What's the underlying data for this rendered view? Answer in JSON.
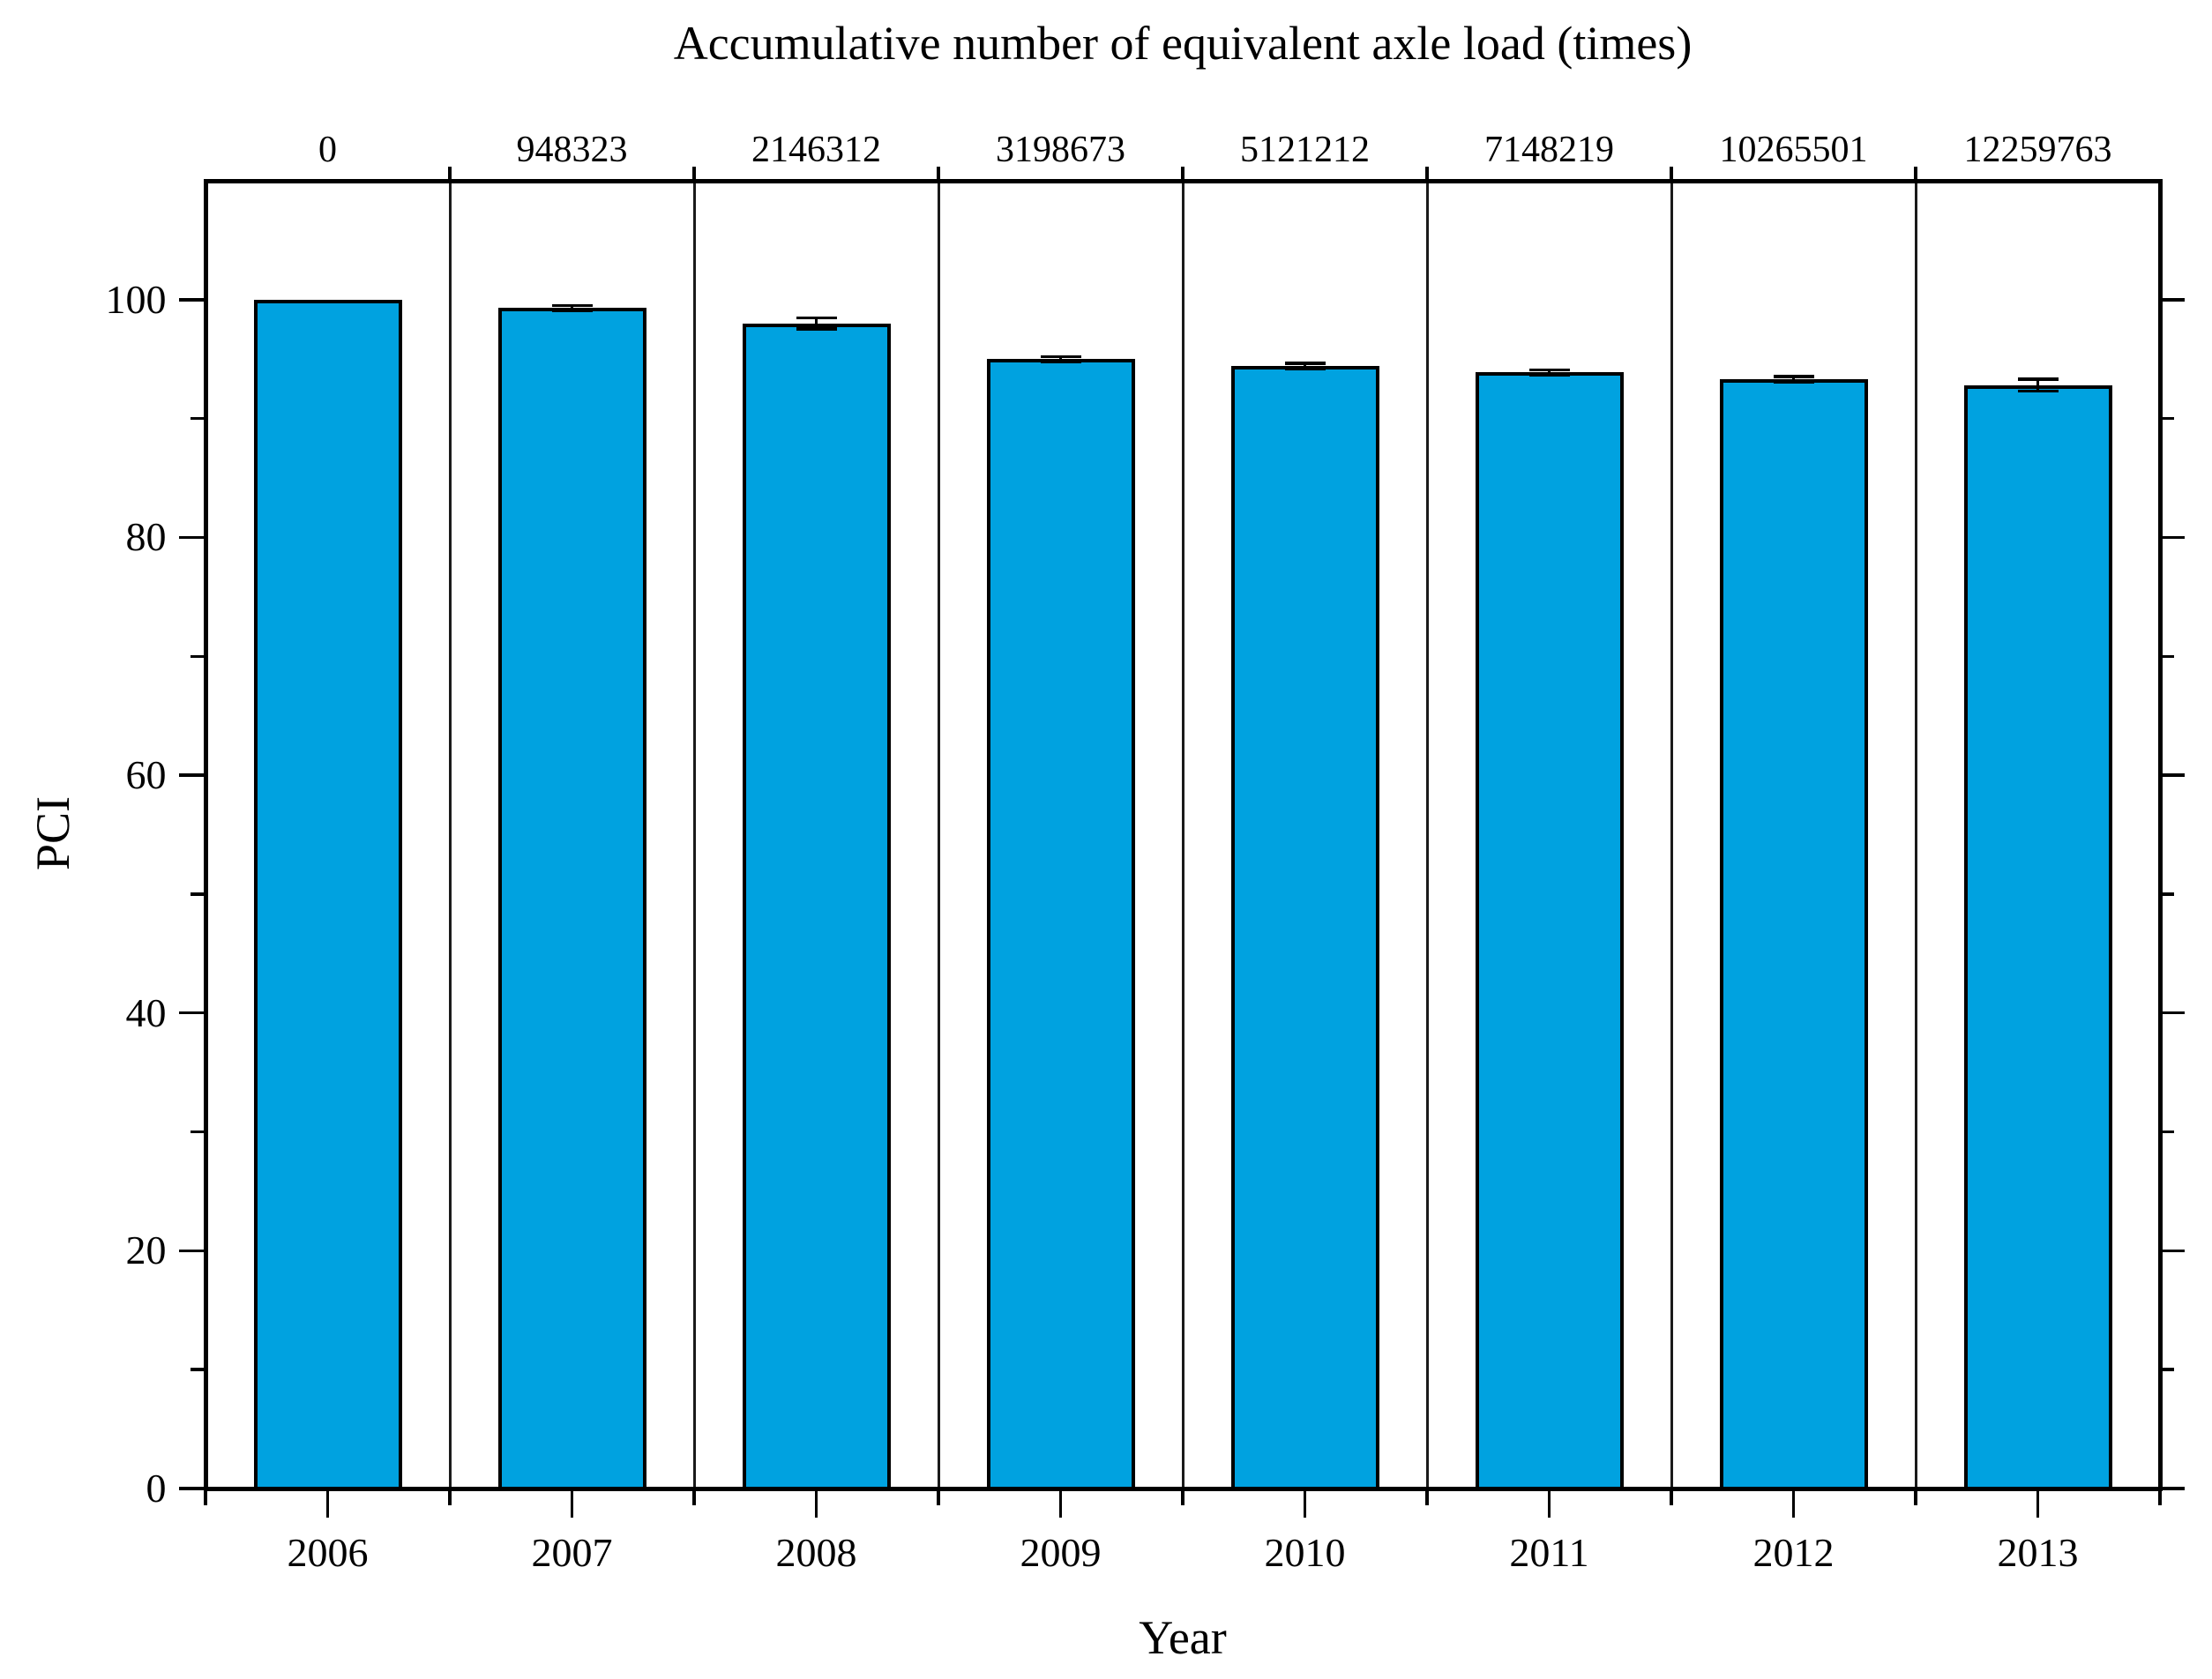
{
  "chart_data": {
    "type": "bar",
    "title": "Accumulative number of equivalent axle load (times)",
    "xlabel": "Year",
    "ylabel": "PCI",
    "categories": [
      "2006",
      "2007",
      "2008",
      "2009",
      "2010",
      "2011",
      "2012",
      "2013"
    ],
    "values": [
      100.0,
      99.3,
      98.0,
      95.0,
      94.4,
      93.9,
      93.3,
      92.8
    ],
    "errors": [
      0,
      0.2,
      0.45,
      0.2,
      0.25,
      0.2,
      0.25,
      0.5
    ],
    "top_axis_labels": [
      "0",
      "948323",
      "2146312",
      "3198673",
      "5121212",
      "7148219",
      "10265501",
      "12259763"
    ],
    "ylim": [
      0,
      110
    ],
    "y_major_ticks": [
      0,
      20,
      40,
      60,
      80,
      100
    ],
    "y_minor_ticks": [
      10,
      30,
      50,
      70,
      90
    ],
    "bar_color": "#00A2E0",
    "bar_edge_color": "#000000",
    "error_color": "#000000",
    "frame_color": "#000000",
    "separator_color": "#1a1a1a",
    "grid": "vertical panel separators between categories",
    "legend_position": "none"
  }
}
